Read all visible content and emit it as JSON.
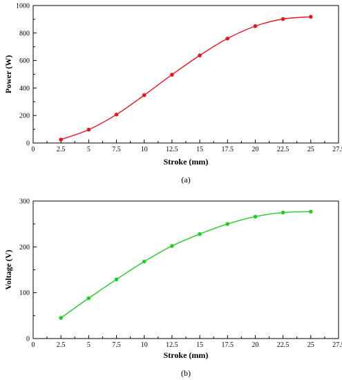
{
  "chart_data": [
    {
      "type": "line",
      "xlabel": "Stroke (mm)",
      "ylabel": "Power (W)",
      "caption": "(a)",
      "color": "#e8141e",
      "xlim": [
        0,
        27.5
      ],
      "ylim": [
        0,
        1000
      ],
      "x_ticks": [
        0,
        2.5,
        5,
        7.5,
        10,
        12.5,
        15,
        17.5,
        20,
        22.5,
        25,
        27.5
      ],
      "y_ticks": [
        0,
        200,
        400,
        600,
        800,
        1000
      ],
      "x_tick_labels": [
        "0",
        "2.5",
        "5",
        "7.5",
        "10",
        "12.5",
        "15",
        "17.5",
        "20",
        "22.5",
        "25",
        "27.5"
      ],
      "y_tick_labels": [
        "0",
        "200",
        "400",
        "600",
        "800",
        "1000"
      ],
      "x": [
        2.5,
        5,
        7.5,
        10,
        12.5,
        15,
        17.5,
        20,
        22.5,
        25
      ],
      "values": [
        25,
        97,
        207,
        348,
        497,
        637,
        760,
        850,
        902,
        918
      ]
    },
    {
      "type": "line",
      "xlabel": "Stroke (mm)",
      "ylabel": "Voltage (V)",
      "caption": "(b)",
      "color": "#22cc22",
      "xlim": [
        0,
        27.5
      ],
      "ylim": [
        0,
        300
      ],
      "x_ticks": [
        0,
        2.5,
        5,
        7.5,
        10,
        12.5,
        15,
        17.5,
        20,
        22.5,
        25,
        27.5
      ],
      "y_ticks": [
        0,
        100,
        200,
        300
      ],
      "x_tick_labels": [
        "0",
        "2.5",
        "5",
        "7.5",
        "10",
        "12.5",
        "15",
        "17.5",
        "20",
        "22.5",
        "25",
        "27.5"
      ],
      "y_tick_labels": [
        "0",
        "100",
        "200",
        "300"
      ],
      "x": [
        2.5,
        5,
        7.5,
        10,
        12.5,
        15,
        17.5,
        20,
        22.5,
        25
      ],
      "values": [
        45,
        88,
        129,
        168,
        202,
        228,
        250,
        266,
        275,
        277
      ]
    }
  ]
}
